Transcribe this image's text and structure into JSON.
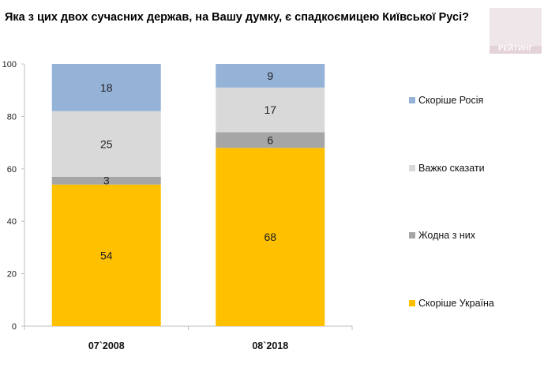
{
  "title": "Яка з цих двох сучасних держав, на Вашу думку, є спадкоємицею Київської Русі?",
  "logo_text": "РЕЙТИНГ",
  "chart_data": {
    "type": "bar",
    "stacked": true,
    "categories": [
      "07`2008",
      "08`2018"
    ],
    "series": [
      {
        "name": "Скоріше Україна",
        "color": "#ffc000",
        "values": [
          54,
          68
        ]
      },
      {
        "name": "Жодна з них",
        "color": "#a6a6a6",
        "values": [
          3,
          6
        ]
      },
      {
        "name": "Важко сказати",
        "color": "#d9d9d9",
        "values": [
          25,
          17
        ]
      },
      {
        "name": "Скоріше Росія",
        "color": "#95b3d7",
        "values": [
          18,
          9
        ]
      }
    ],
    "ylim": [
      0,
      100
    ],
    "yticks": [
      0,
      20,
      40,
      60,
      80,
      100
    ],
    "grid": false,
    "legend_position": "right",
    "legend_order": [
      "Скоріше Росія",
      "Важко сказати",
      "Жодна з них",
      "Скоріше Україна"
    ]
  }
}
